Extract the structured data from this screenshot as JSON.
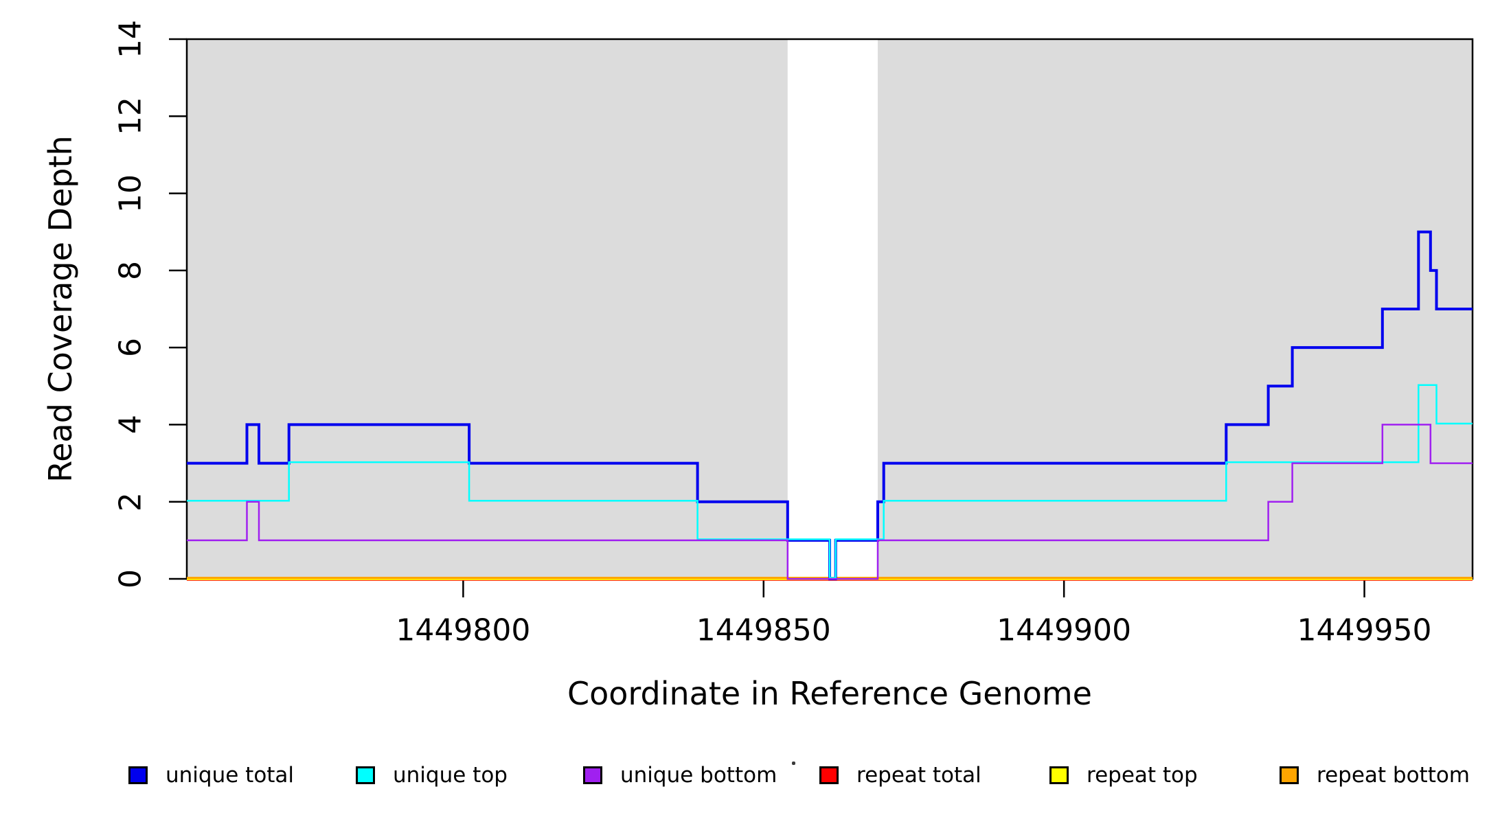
{
  "y_axis": {
    "label": "Read Coverage Depth",
    "tick_values": [
      0,
      2,
      4,
      6,
      8,
      10,
      12,
      14
    ],
    "range": [
      0,
      14
    ]
  },
  "x_axis": {
    "label": "Coordinate in Reference Genome",
    "ticks": [
      {
        "label": "1449800",
        "value": 1449800
      },
      {
        "label": "1449850",
        "value": 1449850
      },
      {
        "label": "1449900",
        "value": 1449900
      },
      {
        "label": "1449950",
        "value": 1449950
      }
    ],
    "range": [
      1449754,
      1449968
    ]
  },
  "legend": [
    {
      "label": "unique total",
      "color": "#0000EE"
    },
    {
      "label": "unique top",
      "color": "#00FFFF"
    },
    {
      "label": "unique bottom",
      "color": "#A020F0"
    },
    {
      "label": "repeat total",
      "color": "#FF0000"
    },
    {
      "label": "repeat top",
      "color": "#FFFF00"
    },
    {
      "label": "repeat bottom",
      "color": "#FFA500"
    }
  ],
  "colors": {
    "shade": "#DCDCDC",
    "frame": "#000000",
    "background": "#FFFFFF",
    "text": "#000000"
  },
  "chart_data": {
    "type": "line",
    "subtype": "step",
    "title": "",
    "xlabel": "Coordinate in Reference Genome",
    "ylabel": "Read Coverage Depth",
    "xlim": [
      1449754,
      1449968
    ],
    "ylim": [
      0,
      14
    ],
    "grid": false,
    "legend_position": "bottom",
    "shaded_regions": [
      [
        1449754,
        1449854
      ],
      [
        1449869,
        1449968
      ]
    ],
    "unshaded_gap": [
      1449854,
      1449869
    ],
    "series": [
      {
        "name": "unique total",
        "color": "#0000EE",
        "width": 4,
        "steps": [
          [
            1449754,
            3
          ],
          [
            1449764,
            4
          ],
          [
            1449766,
            3
          ],
          [
            1449771,
            4
          ],
          [
            1449801,
            3
          ],
          [
            1449839,
            2
          ],
          [
            1449854,
            1
          ],
          [
            1449861,
            0
          ],
          [
            1449862,
            1
          ],
          [
            1449869,
            2
          ],
          [
            1449870,
            3
          ],
          [
            1449927,
            4
          ],
          [
            1449934,
            5
          ],
          [
            1449938,
            6
          ],
          [
            1449953,
            7
          ],
          [
            1449959,
            9
          ],
          [
            1449961,
            8
          ],
          [
            1449962,
            7
          ]
        ],
        "end": 1449968
      },
      {
        "name": "unique top",
        "color": "#00FFFF",
        "width": 2.5,
        "steps": [
          [
            1449754,
            2
          ],
          [
            1449771,
            3
          ],
          [
            1449801,
            2
          ],
          [
            1449839,
            1
          ],
          [
            1449861,
            0
          ],
          [
            1449862,
            1
          ],
          [
            1449870,
            2
          ],
          [
            1449927,
            3
          ],
          [
            1449959,
            5
          ],
          [
            1449962,
            4
          ]
        ],
        "end": 1449968
      },
      {
        "name": "unique bottom",
        "color": "#A020F0",
        "width": 2.5,
        "steps": [
          [
            1449754,
            1
          ],
          [
            1449764,
            2
          ],
          [
            1449766,
            1
          ],
          [
            1449854,
            0
          ],
          [
            1449869,
            1
          ],
          [
            1449934,
            2
          ],
          [
            1449938,
            3
          ],
          [
            1449953,
            4
          ],
          [
            1449961,
            3
          ]
        ],
        "end": 1449968
      },
      {
        "name": "repeat total",
        "color": "#FF0000",
        "width": 2.5,
        "steps": [
          [
            1449754,
            0
          ]
        ],
        "end": 1449968
      },
      {
        "name": "repeat top",
        "color": "#FFFF00",
        "width": 2.5,
        "steps": [
          [
            1449754,
            0
          ]
        ],
        "end": 1449968
      },
      {
        "name": "repeat bottom",
        "color": "#FFA500",
        "width": 3,
        "steps": [
          [
            1449754,
            0
          ]
        ],
        "end": 1449968
      }
    ]
  }
}
